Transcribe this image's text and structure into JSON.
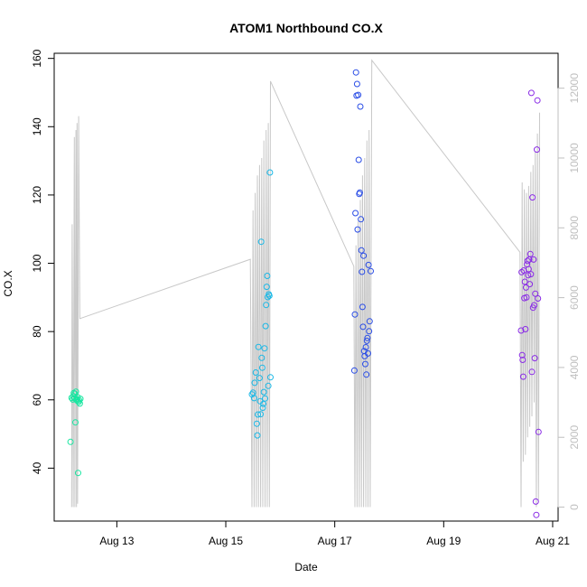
{
  "chart_data": {
    "type": "scatter",
    "title": "ATOM1 Northbound CO.X",
    "xlabel": "Date",
    "ylabel": "CO.X",
    "x_ticks": [
      "Aug 13",
      "Aug 15",
      "Aug 17",
      "Aug 19",
      "Aug 21"
    ],
    "x_tick_days": [
      13,
      15,
      17,
      19,
      21
    ],
    "xlim": [
      11.85,
      21.1
    ],
    "y_left": {
      "lim": [
        24.5,
        161.5
      ],
      "ticks": [
        40,
        60,
        80,
        100,
        120,
        140,
        160
      ]
    },
    "y_right": {
      "lim": [
        -400,
        13000
      ],
      "ticks": [
        0,
        2000,
        4000,
        6000,
        8000,
        10000,
        12000
      ],
      "color": "#bfbfbf"
    },
    "grid": false,
    "legend": "none",
    "secondary_series": {
      "color": "#c8c8c8",
      "points": [
        [
          12.17,
          0
        ],
        [
          12.18,
          8100
        ],
        [
          12.2,
          0
        ],
        [
          12.22,
          10600
        ],
        [
          12.23,
          0
        ],
        [
          12.25,
          10800
        ],
        [
          12.26,
          0
        ],
        [
          12.27,
          11000
        ],
        [
          12.28,
          100
        ],
        [
          12.3,
          11200
        ],
        [
          12.32,
          5400
        ],
        [
          15.45,
          7100
        ],
        [
          15.48,
          0
        ],
        [
          15.5,
          8500
        ],
        [
          15.52,
          0
        ],
        [
          15.54,
          9000
        ],
        [
          15.56,
          0
        ],
        [
          15.58,
          9500
        ],
        [
          15.6,
          0
        ],
        [
          15.62,
          9800
        ],
        [
          15.64,
          0
        ],
        [
          15.66,
          10000
        ],
        [
          15.68,
          0
        ],
        [
          15.7,
          10500
        ],
        [
          15.72,
          0
        ],
        [
          15.74,
          10800
        ],
        [
          15.76,
          0
        ],
        [
          15.78,
          11000
        ],
        [
          15.8,
          0
        ],
        [
          15.82,
          12200
        ],
        [
          17.35,
          6900
        ],
        [
          17.37,
          0
        ],
        [
          17.39,
          7500
        ],
        [
          17.41,
          0
        ],
        [
          17.43,
          8200
        ],
        [
          17.45,
          0
        ],
        [
          17.47,
          8800
        ],
        [
          17.49,
          0
        ],
        [
          17.51,
          9500
        ],
        [
          17.53,
          0
        ],
        [
          17.55,
          10000
        ],
        [
          17.57,
          0
        ],
        [
          17.59,
          10500
        ],
        [
          17.61,
          0
        ],
        [
          17.63,
          10800
        ],
        [
          17.65,
          0
        ],
        [
          17.68,
          12800
        ],
        [
          20.4,
          7300
        ],
        [
          20.42,
          0
        ],
        [
          20.44,
          9300
        ],
        [
          20.46,
          1300
        ],
        [
          20.48,
          9100
        ],
        [
          20.5,
          1500
        ],
        [
          20.52,
          9000
        ],
        [
          20.54,
          2000
        ],
        [
          20.56,
          9200
        ],
        [
          20.58,
          2300
        ],
        [
          20.6,
          9600
        ],
        [
          20.62,
          2600
        ],
        [
          20.64,
          9800
        ],
        [
          20.66,
          3000
        ],
        [
          20.68,
          10200
        ],
        [
          20.7,
          0
        ],
        [
          20.72,
          10700
        ],
        [
          20.74,
          200
        ],
        [
          20.76,
          11300
        ]
      ]
    },
    "series": [
      {
        "color": "#17e6a0",
        "points": [
          [
            12.15,
            47.7
          ],
          [
            12.17,
            60.6
          ],
          [
            12.19,
            60.1
          ],
          [
            12.2,
            61.0
          ],
          [
            12.21,
            62.0
          ],
          [
            12.22,
            60.5
          ],
          [
            12.23,
            61.8
          ],
          [
            12.24,
            53.4
          ],
          [
            12.25,
            62.4
          ],
          [
            12.26,
            60.2
          ],
          [
            12.27,
            59.8
          ],
          [
            12.28,
            60.8
          ],
          [
            12.29,
            38.6
          ],
          [
            12.3,
            59.4
          ],
          [
            12.31,
            59.9
          ],
          [
            12.32,
            58.9
          ],
          [
            12.33,
            60.3
          ]
        ]
      },
      {
        "color": "#1ab8e6",
        "points": [
          [
            15.48,
            61.6
          ],
          [
            15.5,
            62.1
          ],
          [
            15.52,
            60.5
          ],
          [
            15.53,
            65.0
          ],
          [
            15.55,
            68.0
          ],
          [
            15.57,
            53.0
          ],
          [
            15.58,
            49.6
          ],
          [
            15.59,
            55.7
          ],
          [
            15.6,
            75.5
          ],
          [
            15.62,
            66.4
          ],
          [
            15.63,
            59.6
          ],
          [
            15.64,
            55.8
          ],
          [
            15.65,
            106.3
          ],
          [
            15.66,
            72.3
          ],
          [
            15.67,
            69.4
          ],
          [
            15.68,
            57.7
          ],
          [
            15.69,
            58.8
          ],
          [
            15.7,
            62.3
          ],
          [
            15.71,
            75.1
          ],
          [
            15.72,
            60.4
          ],
          [
            15.73,
            81.6
          ],
          [
            15.74,
            87.8
          ],
          [
            15.75,
            93.1
          ],
          [
            15.76,
            96.3
          ],
          [
            15.77,
            90.1
          ],
          [
            15.78,
            64.1
          ],
          [
            15.79,
            90.9
          ],
          [
            15.8,
            90.5
          ],
          [
            15.81,
            126.6
          ],
          [
            15.82,
            66.6
          ]
        ]
      },
      {
        "color": "#2a4de6",
        "points": [
          [
            17.36,
            68.6
          ],
          [
            17.37,
            85.0
          ],
          [
            17.38,
            114.7
          ],
          [
            17.39,
            155.9
          ],
          [
            17.4,
            149.1
          ],
          [
            17.41,
            152.5
          ],
          [
            17.42,
            109.9
          ],
          [
            17.43,
            149.3
          ],
          [
            17.44,
            130.3
          ],
          [
            17.45,
            120.3
          ],
          [
            17.46,
            120.7
          ],
          [
            17.47,
            145.9
          ],
          [
            17.48,
            112.9
          ],
          [
            17.49,
            103.8
          ],
          [
            17.5,
            97.5
          ],
          [
            17.51,
            87.2
          ],
          [
            17.52,
            81.4
          ],
          [
            17.53,
            102.2
          ],
          [
            17.54,
            74.3
          ],
          [
            17.55,
            72.8
          ],
          [
            17.56,
            70.5
          ],
          [
            17.57,
            75.4
          ],
          [
            17.58,
            67.4
          ],
          [
            17.59,
            77.3
          ],
          [
            17.6,
            78.1
          ],
          [
            17.61,
            73.6
          ],
          [
            17.62,
            99.5
          ],
          [
            17.63,
            80.1
          ],
          [
            17.64,
            83.0
          ],
          [
            17.66,
            97.7
          ]
        ]
      },
      {
        "color": "#8a2be6",
        "points": [
          [
            20.42,
            80.3
          ],
          [
            20.43,
            97.4
          ],
          [
            20.44,
            73.1
          ],
          [
            20.45,
            71.7
          ],
          [
            20.46,
            66.8
          ],
          [
            20.47,
            97.9
          ],
          [
            20.48,
            89.8
          ],
          [
            20.49,
            94.6
          ],
          [
            20.5,
            80.7
          ],
          [
            20.51,
            92.9
          ],
          [
            20.52,
            90.0
          ],
          [
            20.53,
            99.7
          ],
          [
            20.54,
            100.7
          ],
          [
            20.55,
            96.5
          ],
          [
            20.56,
            98.3
          ],
          [
            20.57,
            101.1
          ],
          [
            20.58,
            93.9
          ],
          [
            20.59,
            102.7
          ],
          [
            20.6,
            96.8
          ],
          [
            20.61,
            149.9
          ],
          [
            20.62,
            68.2
          ],
          [
            20.63,
            119.3
          ],
          [
            20.64,
            87.0
          ],
          [
            20.65,
            101.1
          ],
          [
            20.66,
            87.7
          ],
          [
            20.67,
            72.2
          ],
          [
            20.68,
            91.1
          ],
          [
            20.69,
            30.2
          ],
          [
            20.7,
            26.3
          ],
          [
            20.71,
            133.3
          ],
          [
            20.72,
            147.7
          ],
          [
            20.73,
            89.7
          ],
          [
            20.74,
            50.6
          ]
        ]
      }
    ]
  }
}
